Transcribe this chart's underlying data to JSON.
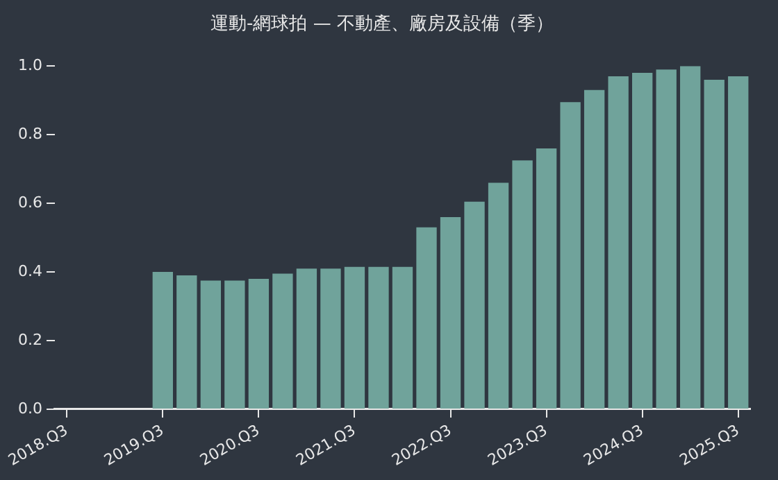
{
  "chart_data": {
    "type": "bar",
    "title": "運動-網球拍 — 不動產、廠房及設備（季）",
    "categories": [
      "2018.Q3",
      null,
      null,
      null,
      "2019.Q3",
      null,
      null,
      null,
      "2020.Q3",
      null,
      null,
      null,
      "2021.Q3",
      null,
      null,
      null,
      "2022.Q3",
      null,
      null,
      null,
      "2023.Q3",
      null,
      null,
      null,
      "2024.Q3",
      null,
      null,
      null,
      "2025.Q3"
    ],
    "values": [
      null,
      null,
      null,
      null,
      0.4,
      0.39,
      0.375,
      0.375,
      0.38,
      0.395,
      0.41,
      0.41,
      0.415,
      0.415,
      0.415,
      0.53,
      0.56,
      0.605,
      0.66,
      0.725,
      0.76,
      0.895,
      0.93,
      0.97,
      0.98,
      0.99,
      1.0,
      0.96,
      0.97
    ],
    "color": "#70a39b",
    "ylim": [
      0,
      1.0
    ],
    "yticks": [
      {
        "value": 0,
        "label": "0.0"
      },
      0.2,
      0.4,
      0.6,
      0.8,
      {
        "value": 1.0,
        "label": "1.0"
      }
    ],
    "grid": false,
    "legend": false
  }
}
